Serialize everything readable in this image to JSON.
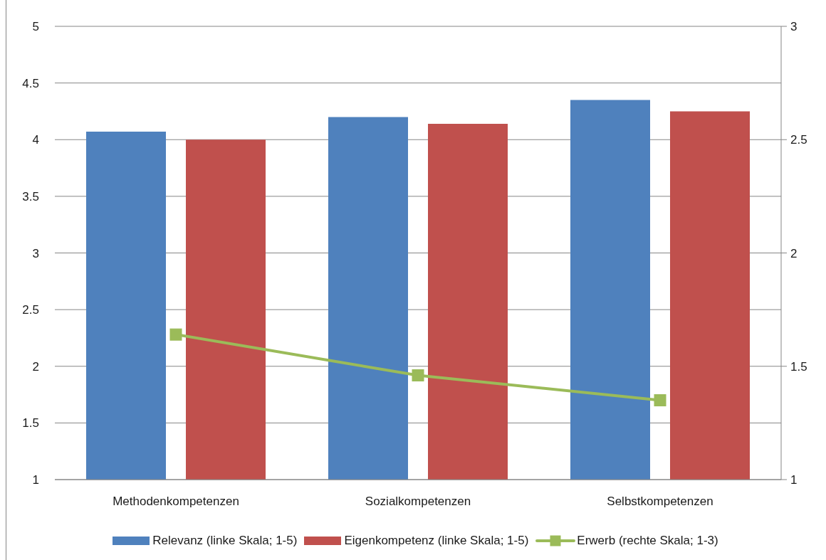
{
  "chart_data": {
    "type": "bar",
    "categories": [
      "Methodenkompetenzen",
      "Sozialkompetenzen",
      "Selbstkompetenzen"
    ],
    "series": [
      {
        "name": "Relevanz (linke Skala; 1-5)",
        "color": "#4f81bd",
        "values": [
          4.07,
          4.2,
          4.35
        ]
      },
      {
        "name": "Eigenkompetenz (linke Skala; 1-5)",
        "color": "#c0504d",
        "values": [
          4.0,
          4.14,
          4.25
        ]
      },
      {
        "name": "Erwerb (rechte Skala; 1-3)",
        "type": "line",
        "axis": "y2",
        "color": "#9bbb59",
        "values": [
          1.64,
          1.46,
          1.35
        ]
      }
    ],
    "ylim": [
      1,
      5
    ],
    "yticks": [
      1,
      1.5,
      2,
      2.5,
      3,
      3.5,
      4,
      4.5,
      5
    ],
    "y2lim": [
      1,
      3
    ],
    "y2ticks": [
      1,
      1.5,
      2,
      2.5,
      3
    ],
    "grid": "y",
    "legend": "bottom",
    "marker": "square"
  }
}
